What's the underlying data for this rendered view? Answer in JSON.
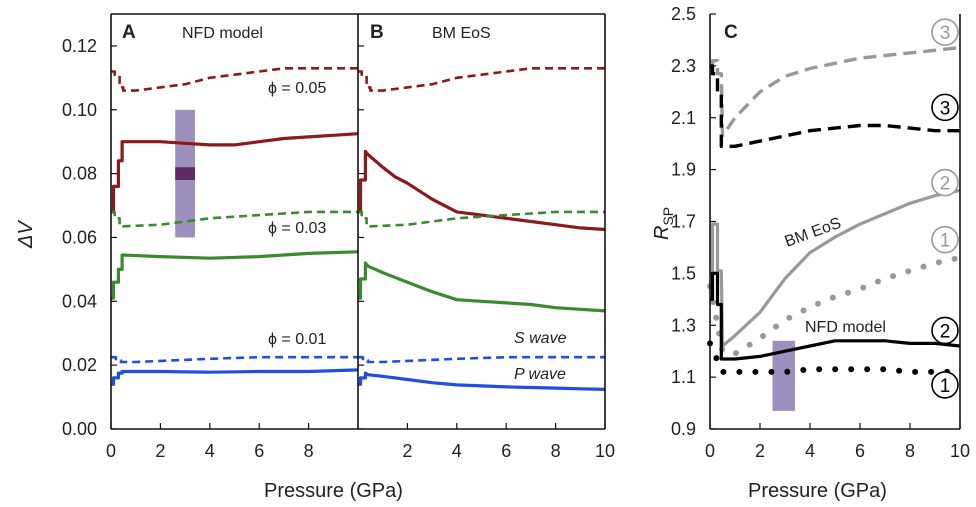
{
  "chart_data": [
    {
      "panel": "A",
      "type": "line",
      "caption": "NFD model",
      "xlabel": "Pressure (GPa)",
      "ylabel": "ΔV",
      "xlim": [
        0,
        10
      ],
      "ylim": [
        0,
        0.13
      ],
      "xticks": [
        0,
        2,
        4,
        6,
        8
      ],
      "yticks": [
        0.0,
        0.02,
        0.04,
        0.06,
        0.08,
        0.1,
        0.12
      ],
      "ytick_labels": [
        "0.00",
        "0.02",
        "0.04",
        "0.06",
        "0.08",
        "0.10",
        "0.12"
      ],
      "annotations": [
        "ϕ = 0.05",
        "ϕ = 0.03",
        "ϕ = 0.01"
      ],
      "shaded_band": {
        "x": [
          2.6,
          3.4
        ],
        "y": [
          0.06,
          0.1
        ],
        "dark_y": [
          0.078,
          0.082
        ],
        "color": "#8c7bb5",
        "dark_color": "#5c2a6a"
      },
      "series": [
        {
          "color": "#8b1a1a",
          "style": "dashed",
          "x": [
            0,
            0.15,
            0.15,
            0.35,
            0.35,
            0.5,
            0.5,
            1,
            2,
            3,
            4,
            5,
            6,
            7,
            8,
            9,
            10
          ],
          "y": [
            0.112,
            0.112,
            0.111,
            0.111,
            0.107,
            0.107,
            0.106,
            0.106,
            0.107,
            0.108,
            0.11,
            0.111,
            0.112,
            0.113,
            0.113,
            0.113,
            0.113
          ]
        },
        {
          "color": "#8b1a1a",
          "style": "solid",
          "x": [
            0,
            0.1,
            0.1,
            0.3,
            0.3,
            0.45,
            0.45,
            1,
            2,
            3,
            4,
            5,
            6,
            7,
            8,
            9,
            10
          ],
          "y": [
            0.068,
            0.068,
            0.076,
            0.076,
            0.084,
            0.084,
            0.09,
            0.09,
            0.09,
            0.0895,
            0.089,
            0.089,
            0.09,
            0.091,
            0.0915,
            0.092,
            0.0925
          ]
        },
        {
          "color": "#3a8a2e",
          "style": "dashed",
          "x": [
            0,
            0.15,
            0.15,
            0.35,
            0.35,
            0.5,
            0.5,
            2,
            4,
            6,
            8,
            10
          ],
          "y": [
            0.068,
            0.068,
            0.066,
            0.066,
            0.064,
            0.064,
            0.0635,
            0.064,
            0.066,
            0.067,
            0.068,
            0.068
          ]
        },
        {
          "color": "#3a8a2e",
          "style": "solid",
          "x": [
            0,
            0.1,
            0.1,
            0.3,
            0.3,
            0.45,
            0.45,
            2,
            4,
            6,
            8,
            10
          ],
          "y": [
            0.041,
            0.041,
            0.046,
            0.046,
            0.05,
            0.05,
            0.0545,
            0.054,
            0.0535,
            0.054,
            0.055,
            0.0555
          ]
        },
        {
          "color": "#1f4fe0",
          "style": "dashed",
          "x": [
            0,
            0.2,
            0.2,
            0.4,
            0.4,
            1,
            4,
            6,
            8,
            10
          ],
          "y": [
            0.0225,
            0.0225,
            0.0215,
            0.0215,
            0.021,
            0.021,
            0.022,
            0.0225,
            0.0225,
            0.0225
          ]
        },
        {
          "color": "#1f4fe0",
          "style": "solid",
          "x": [
            0,
            0.1,
            0.1,
            0.3,
            0.3,
            0.45,
            0.45,
            2,
            4,
            6,
            8,
            10
          ],
          "y": [
            0.014,
            0.014,
            0.016,
            0.016,
            0.0175,
            0.0175,
            0.018,
            0.018,
            0.0178,
            0.018,
            0.018,
            0.0185
          ]
        }
      ]
    },
    {
      "panel": "B",
      "type": "line",
      "caption": "BM EoS",
      "xlabel": "Pressure (GPa)",
      "xlim": [
        0,
        10
      ],
      "ylim": [
        0,
        0.13
      ],
      "xticks": [
        2,
        4,
        6,
        8,
        10
      ],
      "annotations": [
        "S  wave",
        "P  wave"
      ],
      "series": [
        {
          "color": "#8b1a1a",
          "style": "dashed",
          "x": [
            0,
            0.15,
            0.15,
            0.35,
            0.35,
            0.5,
            0.5,
            1,
            2,
            3,
            4,
            5,
            6,
            7,
            8,
            9,
            10
          ],
          "y": [
            0.112,
            0.112,
            0.111,
            0.111,
            0.107,
            0.107,
            0.106,
            0.106,
            0.107,
            0.108,
            0.11,
            0.111,
            0.112,
            0.113,
            0.113,
            0.113,
            0.113
          ]
        },
        {
          "color": "#8b1a1a",
          "style": "solid",
          "x": [
            0,
            0.1,
            0.1,
            0.3,
            0.3,
            0.4,
            1,
            1.5,
            2,
            3,
            4,
            5,
            6,
            7,
            8,
            9,
            10
          ],
          "y": [
            0.068,
            0.068,
            0.078,
            0.078,
            0.087,
            0.086,
            0.082,
            0.079,
            0.077,
            0.072,
            0.068,
            0.067,
            0.066,
            0.065,
            0.064,
            0.063,
            0.0625
          ]
        },
        {
          "color": "#3a8a2e",
          "style": "dashed",
          "x": [
            0,
            0.15,
            0.15,
            0.35,
            0.35,
            0.5,
            0.5,
            2,
            4,
            6,
            8,
            10
          ],
          "y": [
            0.068,
            0.068,
            0.066,
            0.066,
            0.064,
            0.064,
            0.0635,
            0.064,
            0.066,
            0.067,
            0.068,
            0.068
          ]
        },
        {
          "color": "#3a8a2e",
          "style": "solid",
          "x": [
            0,
            0.1,
            0.1,
            0.3,
            0.3,
            0.4,
            1,
            2,
            3,
            4,
            5,
            6,
            7,
            8,
            9,
            10
          ],
          "y": [
            0.041,
            0.041,
            0.047,
            0.047,
            0.052,
            0.051,
            0.049,
            0.046,
            0.043,
            0.0405,
            0.04,
            0.0395,
            0.039,
            0.038,
            0.0375,
            0.037
          ]
        },
        {
          "color": "#1f4fe0",
          "style": "dashed",
          "x": [
            0,
            0.2,
            0.2,
            0.4,
            0.4,
            1,
            4,
            6,
            8,
            10
          ],
          "y": [
            0.0225,
            0.0225,
            0.0215,
            0.0215,
            0.021,
            0.021,
            0.022,
            0.0225,
            0.0225,
            0.0225
          ]
        },
        {
          "color": "#1f4fe0",
          "style": "solid",
          "x": [
            0,
            0.1,
            0.1,
            0.3,
            0.3,
            0.4,
            1,
            2,
            3,
            4,
            5,
            6,
            7,
            8,
            9,
            10
          ],
          "y": [
            0.014,
            0.014,
            0.016,
            0.016,
            0.0175,
            0.017,
            0.0165,
            0.0155,
            0.0145,
            0.0138,
            0.0135,
            0.0132,
            0.013,
            0.0128,
            0.0126,
            0.0124
          ]
        }
      ]
    },
    {
      "panel": "C",
      "type": "line",
      "xlabel": "Pressure (GPa)",
      "ylabel": "R",
      "ylabel_sub": "SP",
      "xlim": [
        0,
        10
      ],
      "ylim": [
        0.9,
        2.5
      ],
      "xticks": [
        0,
        2,
        4,
        6,
        8,
        10
      ],
      "yticks": [
        0.9,
        1.1,
        1.3,
        1.5,
        1.7,
        1.9,
        2.1,
        2.3,
        2.5
      ],
      "ytick_labels": [
        "0.9",
        "1.1",
        "1.3",
        "1.5",
        "1.7",
        "1.9",
        "2.1",
        "2.3",
        "2.5"
      ],
      "annotations": [
        "BM EoS",
        "NFD model"
      ],
      "shaded_band": {
        "x": [
          2.5,
          3.4
        ],
        "y": [
          0.97,
          1.24
        ],
        "color": "#8c7bb5"
      },
      "circled_labels": [
        {
          "text": "3",
          "color": "#999999",
          "x": 9.4,
          "y": 2.43
        },
        {
          "text": "3",
          "color": "#000000",
          "x": 9.4,
          "y": 2.14
        },
        {
          "text": "2",
          "color": "#999999",
          "x": 9.4,
          "y": 1.85
        },
        {
          "text": "1",
          "color": "#999999",
          "x": 9.4,
          "y": 1.63
        },
        {
          "text": "2",
          "color": "#000000",
          "x": 9.4,
          "y": 1.28
        },
        {
          "text": "1",
          "color": "#000000",
          "x": 9.4,
          "y": 1.07
        }
      ],
      "series": [
        {
          "label_num": "3",
          "model": "BM EoS",
          "color": "#999999",
          "style": "dashed",
          "x": [
            0,
            0.1,
            0.1,
            0.3,
            0.3,
            0.45,
            0.5,
            1,
            2,
            3,
            4,
            5,
            6,
            7,
            8,
            9,
            10
          ],
          "y": [
            2.3,
            2.3,
            2.32,
            2.32,
            2.27,
            2.27,
            2.03,
            2.1,
            2.2,
            2.26,
            2.29,
            2.31,
            2.33,
            2.34,
            2.35,
            2.36,
            2.37
          ]
        },
        {
          "label_num": "3",
          "model": "NFD model",
          "color": "#000000",
          "style": "dashed",
          "x": [
            0,
            0.1,
            0.1,
            0.3,
            0.3,
            0.45,
            0.45,
            1,
            2,
            3,
            4,
            5,
            6,
            7,
            8,
            9,
            10
          ],
          "y": [
            2.3,
            2.3,
            2.27,
            2.27,
            2.2,
            2.2,
            1.99,
            1.99,
            2.01,
            2.03,
            2.05,
            2.06,
            2.07,
            2.07,
            2.06,
            2.05,
            2.05
          ]
        },
        {
          "label_num": "2",
          "model": "BM EoS",
          "color": "#999999",
          "style": "solid",
          "x": [
            0,
            0.1,
            0.1,
            0.3,
            0.3,
            0.45,
            0.5,
            1,
            2,
            3,
            4,
            5,
            6,
            7,
            8,
            9,
            10
          ],
          "y": [
            1.4,
            1.4,
            1.69,
            1.69,
            1.51,
            1.51,
            1.22,
            1.26,
            1.35,
            1.48,
            1.58,
            1.64,
            1.69,
            1.73,
            1.77,
            1.8,
            1.82
          ]
        },
        {
          "label_num": "1",
          "model": "BM EoS",
          "color": "#999999",
          "style": "dotted",
          "x": [
            0,
            0.5,
            1,
            2,
            3,
            4,
            5,
            6,
            7,
            8,
            9,
            10
          ],
          "y": [
            1.45,
            1.2,
            1.19,
            1.25,
            1.32,
            1.37,
            1.41,
            1.44,
            1.48,
            1.51,
            1.54,
            1.56
          ]
        },
        {
          "label_num": "2",
          "model": "NFD model",
          "color": "#000000",
          "style": "solid",
          "x": [
            0,
            0.1,
            0.1,
            0.3,
            0.3,
            0.45,
            0.45,
            1,
            2,
            3,
            4,
            5,
            6,
            7,
            8,
            9,
            10
          ],
          "y": [
            1.4,
            1.4,
            1.5,
            1.5,
            1.38,
            1.38,
            1.17,
            1.17,
            1.18,
            1.2,
            1.22,
            1.24,
            1.24,
            1.24,
            1.23,
            1.23,
            1.22
          ]
        },
        {
          "label_num": "1",
          "model": "NFD model",
          "color": "#000000",
          "style": "dotted",
          "x": [
            0,
            0.5,
            1,
            2,
            3,
            4,
            5,
            6,
            7,
            8,
            9,
            10
          ],
          "y": [
            1.23,
            1.12,
            1.12,
            1.12,
            1.12,
            1.13,
            1.13,
            1.13,
            1.13,
            1.12,
            1.12,
            1.12
          ]
        }
      ]
    }
  ]
}
